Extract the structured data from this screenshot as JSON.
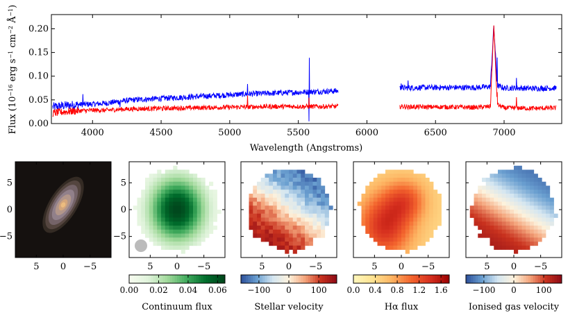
{
  "chart_data": [
    {
      "type": "line",
      "title": "",
      "xlabel": "Wavelength (Angstroms)",
      "ylabel_main": "Flux (10",
      "ylabel_exp1": "−16",
      "ylabel_unit1": " erg s",
      "ylabel_exp2": "−1",
      "ylabel_unit2": " cm",
      "ylabel_exp3": "−2",
      "ylabel_unit3": " Å",
      "ylabel_exp4": "−1",
      "ylabel_close": ")",
      "xlim": [
        3700,
        7420
      ],
      "ylim": [
        0.0,
        0.23
      ],
      "xticks": [
        4000,
        4500,
        5000,
        5500,
        6000,
        6500,
        7000
      ],
      "yticks": [
        0.0,
        0.05,
        0.1,
        0.15,
        0.2
      ],
      "ytick_labels": [
        "0.00",
        "0.05",
        "0.10",
        "0.15",
        "0.20"
      ],
      "gap": [
        5790,
        6240
      ],
      "series": [
        {
          "color": "#0000ff",
          "x": [
            3710,
            3800,
            3900,
            4000,
            4100,
            4200,
            4300,
            4500,
            4700,
            4900,
            5100,
            5300,
            5500,
            5700,
            5790,
            6240,
            6400,
            6600,
            6800,
            6900,
            6925,
            6950,
            7000,
            7100,
            7200,
            7380
          ],
          "y": [
            0.035,
            0.038,
            0.04,
            0.041,
            0.043,
            0.047,
            0.05,
            0.053,
            0.056,
            0.059,
            0.062,
            0.064,
            0.066,
            0.068,
            0.069,
            0.075,
            0.076,
            0.076,
            0.076,
            0.078,
            0.205,
            0.08,
            0.075,
            0.075,
            0.074,
            0.075
          ]
        },
        {
          "color": "#ff0000",
          "x": [
            3710,
            3800,
            3900,
            4000,
            4100,
            4200,
            4300,
            4500,
            4700,
            4900,
            5100,
            5300,
            5500,
            5700,
            5790,
            6240,
            6400,
            6600,
            6800,
            6900,
            6925,
            6950,
            7000,
            7100,
            7200,
            7380
          ],
          "y": [
            0.022,
            0.025,
            0.027,
            0.028,
            0.028,
            0.03,
            0.031,
            0.032,
            0.033,
            0.034,
            0.035,
            0.036,
            0.036,
            0.036,
            0.036,
            0.036,
            0.035,
            0.035,
            0.034,
            0.036,
            0.205,
            0.04,
            0.033,
            0.033,
            0.032,
            0.033
          ]
        }
      ]
    },
    {
      "type": "heatmap",
      "panel": "optical image",
      "xticks": [
        "5",
        "0",
        "−5"
      ],
      "yticks": [
        "5",
        "0",
        "−5"
      ]
    },
    {
      "type": "heatmap",
      "colorbar_label": "Continuum flux",
      "colormap": [
        "#f7fcf0",
        "#e0f3db",
        "#a1d99b",
        "#41ab5d",
        "#006d2c",
        "#00441b"
      ],
      "colorbar_range": [
        0.0,
        0.065
      ],
      "colorbar_ticks": [
        "0.00",
        "0.02",
        "0.04",
        "0.06"
      ],
      "colorbar_tick_values": [
        0.0,
        0.02,
        0.04,
        0.06
      ],
      "xticks": [
        "5",
        "0",
        "−5"
      ],
      "yticks": [
        "5",
        "0",
        "−5"
      ],
      "psf_marker_color": "#bbbbbb"
    },
    {
      "type": "heatmap",
      "colorbar_label": "Stellar velocity",
      "colormap": [
        "#2c4f9a",
        "#6a9fd0",
        "#d4e6f1",
        "#fdf2dc",
        "#f4a57c",
        "#c9321e",
        "#8c0a16"
      ],
      "colorbar_range": [
        -160,
        160
      ],
      "colorbar_ticks": [
        "−100",
        "0",
        "100"
      ],
      "colorbar_tick_values": [
        -100,
        0,
        100
      ],
      "xticks": [
        "5",
        "0",
        "−5"
      ],
      "yticks": [
        "5",
        "0",
        "−5"
      ]
    },
    {
      "type": "heatmap",
      "colorbar_label": "Hα flux",
      "colormap": [
        "#fff7bc",
        "#fee391",
        "#fdb462",
        "#f4662e",
        "#d7301f",
        "#990000"
      ],
      "colorbar_range": [
        0.0,
        1.75
      ],
      "colorbar_ticks": [
        "0.0",
        "0.4",
        "0.8",
        "1.2",
        "1.6"
      ],
      "colorbar_tick_values": [
        0.0,
        0.4,
        0.8,
        1.2,
        1.6
      ],
      "xticks": [
        "5",
        "0",
        "−5"
      ],
      "yticks": [
        "5",
        "0",
        "−5"
      ]
    },
    {
      "type": "heatmap",
      "colorbar_label": "Ionised gas velocity",
      "colormap": [
        "#2c4f9a",
        "#6a9fd0",
        "#d4e6f1",
        "#fdf2dc",
        "#f4a57c",
        "#c9321e",
        "#8c0a16"
      ],
      "colorbar_range": [
        -160,
        160
      ],
      "colorbar_ticks": [
        "−100",
        "0",
        "100"
      ],
      "colorbar_tick_values": [
        -100,
        0,
        100
      ],
      "xticks": [
        "5",
        "0",
        "−5"
      ],
      "yticks": [
        "5",
        "0",
        "−5"
      ]
    }
  ]
}
